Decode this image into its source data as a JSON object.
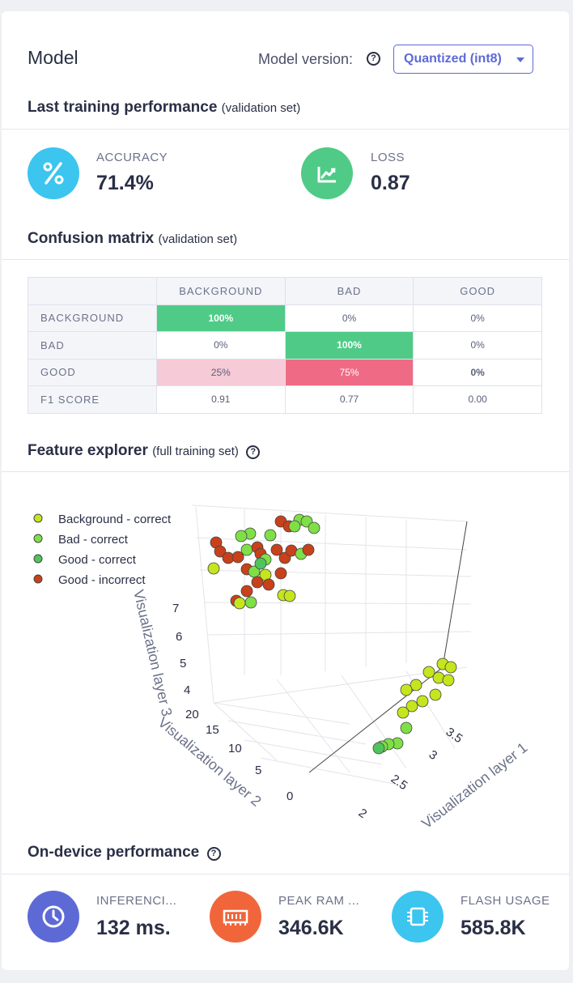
{
  "header": {
    "title": "Model",
    "model_version_label": "Model version:",
    "model_version_value": "Quantized (int8)"
  },
  "training": {
    "title": "Last training performance",
    "subtitle": "(validation set)",
    "accuracy_label": "ACCURACY",
    "accuracy_value": "71.4%",
    "loss_label": "LOSS",
    "loss_value": "0.87"
  },
  "confusion": {
    "title": "Confusion matrix",
    "subtitle": "(validation set)",
    "columns": [
      "BACKGROUND",
      "BAD",
      "GOOD"
    ],
    "rows": [
      {
        "label": "BACKGROUND",
        "cells": [
          "100%",
          "0%",
          "0%"
        ]
      },
      {
        "label": "BAD",
        "cells": [
          "0%",
          "100%",
          "0%"
        ]
      },
      {
        "label": "GOOD",
        "cells": [
          "25%",
          "75%",
          "0%"
        ]
      },
      {
        "label": "F1 SCORE",
        "cells": [
          "0.91",
          "0.77",
          "0.00"
        ]
      }
    ]
  },
  "feature_explorer": {
    "title": "Feature explorer",
    "subtitle": "(full training set)",
    "legend": [
      {
        "label": "Background - correct",
        "color": "#c5e61d"
      },
      {
        "label": "Bad - correct",
        "color": "#7ee046"
      },
      {
        "label": "Good - correct",
        "color": "#4fc45c"
      },
      {
        "label": "Good - incorrect",
        "color": "#c8411a"
      }
    ],
    "axis_layer1": "Visualization layer 1",
    "axis_layer2": "Visualization layer 2",
    "axis_layer3": "Visualization layer 3",
    "ticks_layer3": [
      "7",
      "6",
      "5",
      "4"
    ],
    "ticks_layer2": [
      "20",
      "15",
      "10",
      "5",
      "0"
    ],
    "ticks_layer1": [
      "3.5",
      "3",
      "2.5",
      "2"
    ]
  },
  "on_device": {
    "title": "On-device performance",
    "inferencing_label": "INFERENCI...",
    "inferencing_value": "132 ms.",
    "ram_label": "PEAK RAM ...",
    "ram_value": "346.6K",
    "flash_label": "FLASH USAGE",
    "flash_value": "585.8K"
  },
  "colors": {
    "accent": "#5d6ad6",
    "accuracy_icon": "#3bc5ef",
    "loss_icon": "#4fcb87",
    "inferencing_icon": "#5d6ad6",
    "ram_icon": "#f0663a",
    "flash_icon": "#3bc5ef"
  },
  "icons": {
    "accuracy": "percent-icon",
    "loss": "chart-trend-icon",
    "inferencing": "clock-icon",
    "ram": "memory-icon",
    "flash": "chip-icon"
  }
}
